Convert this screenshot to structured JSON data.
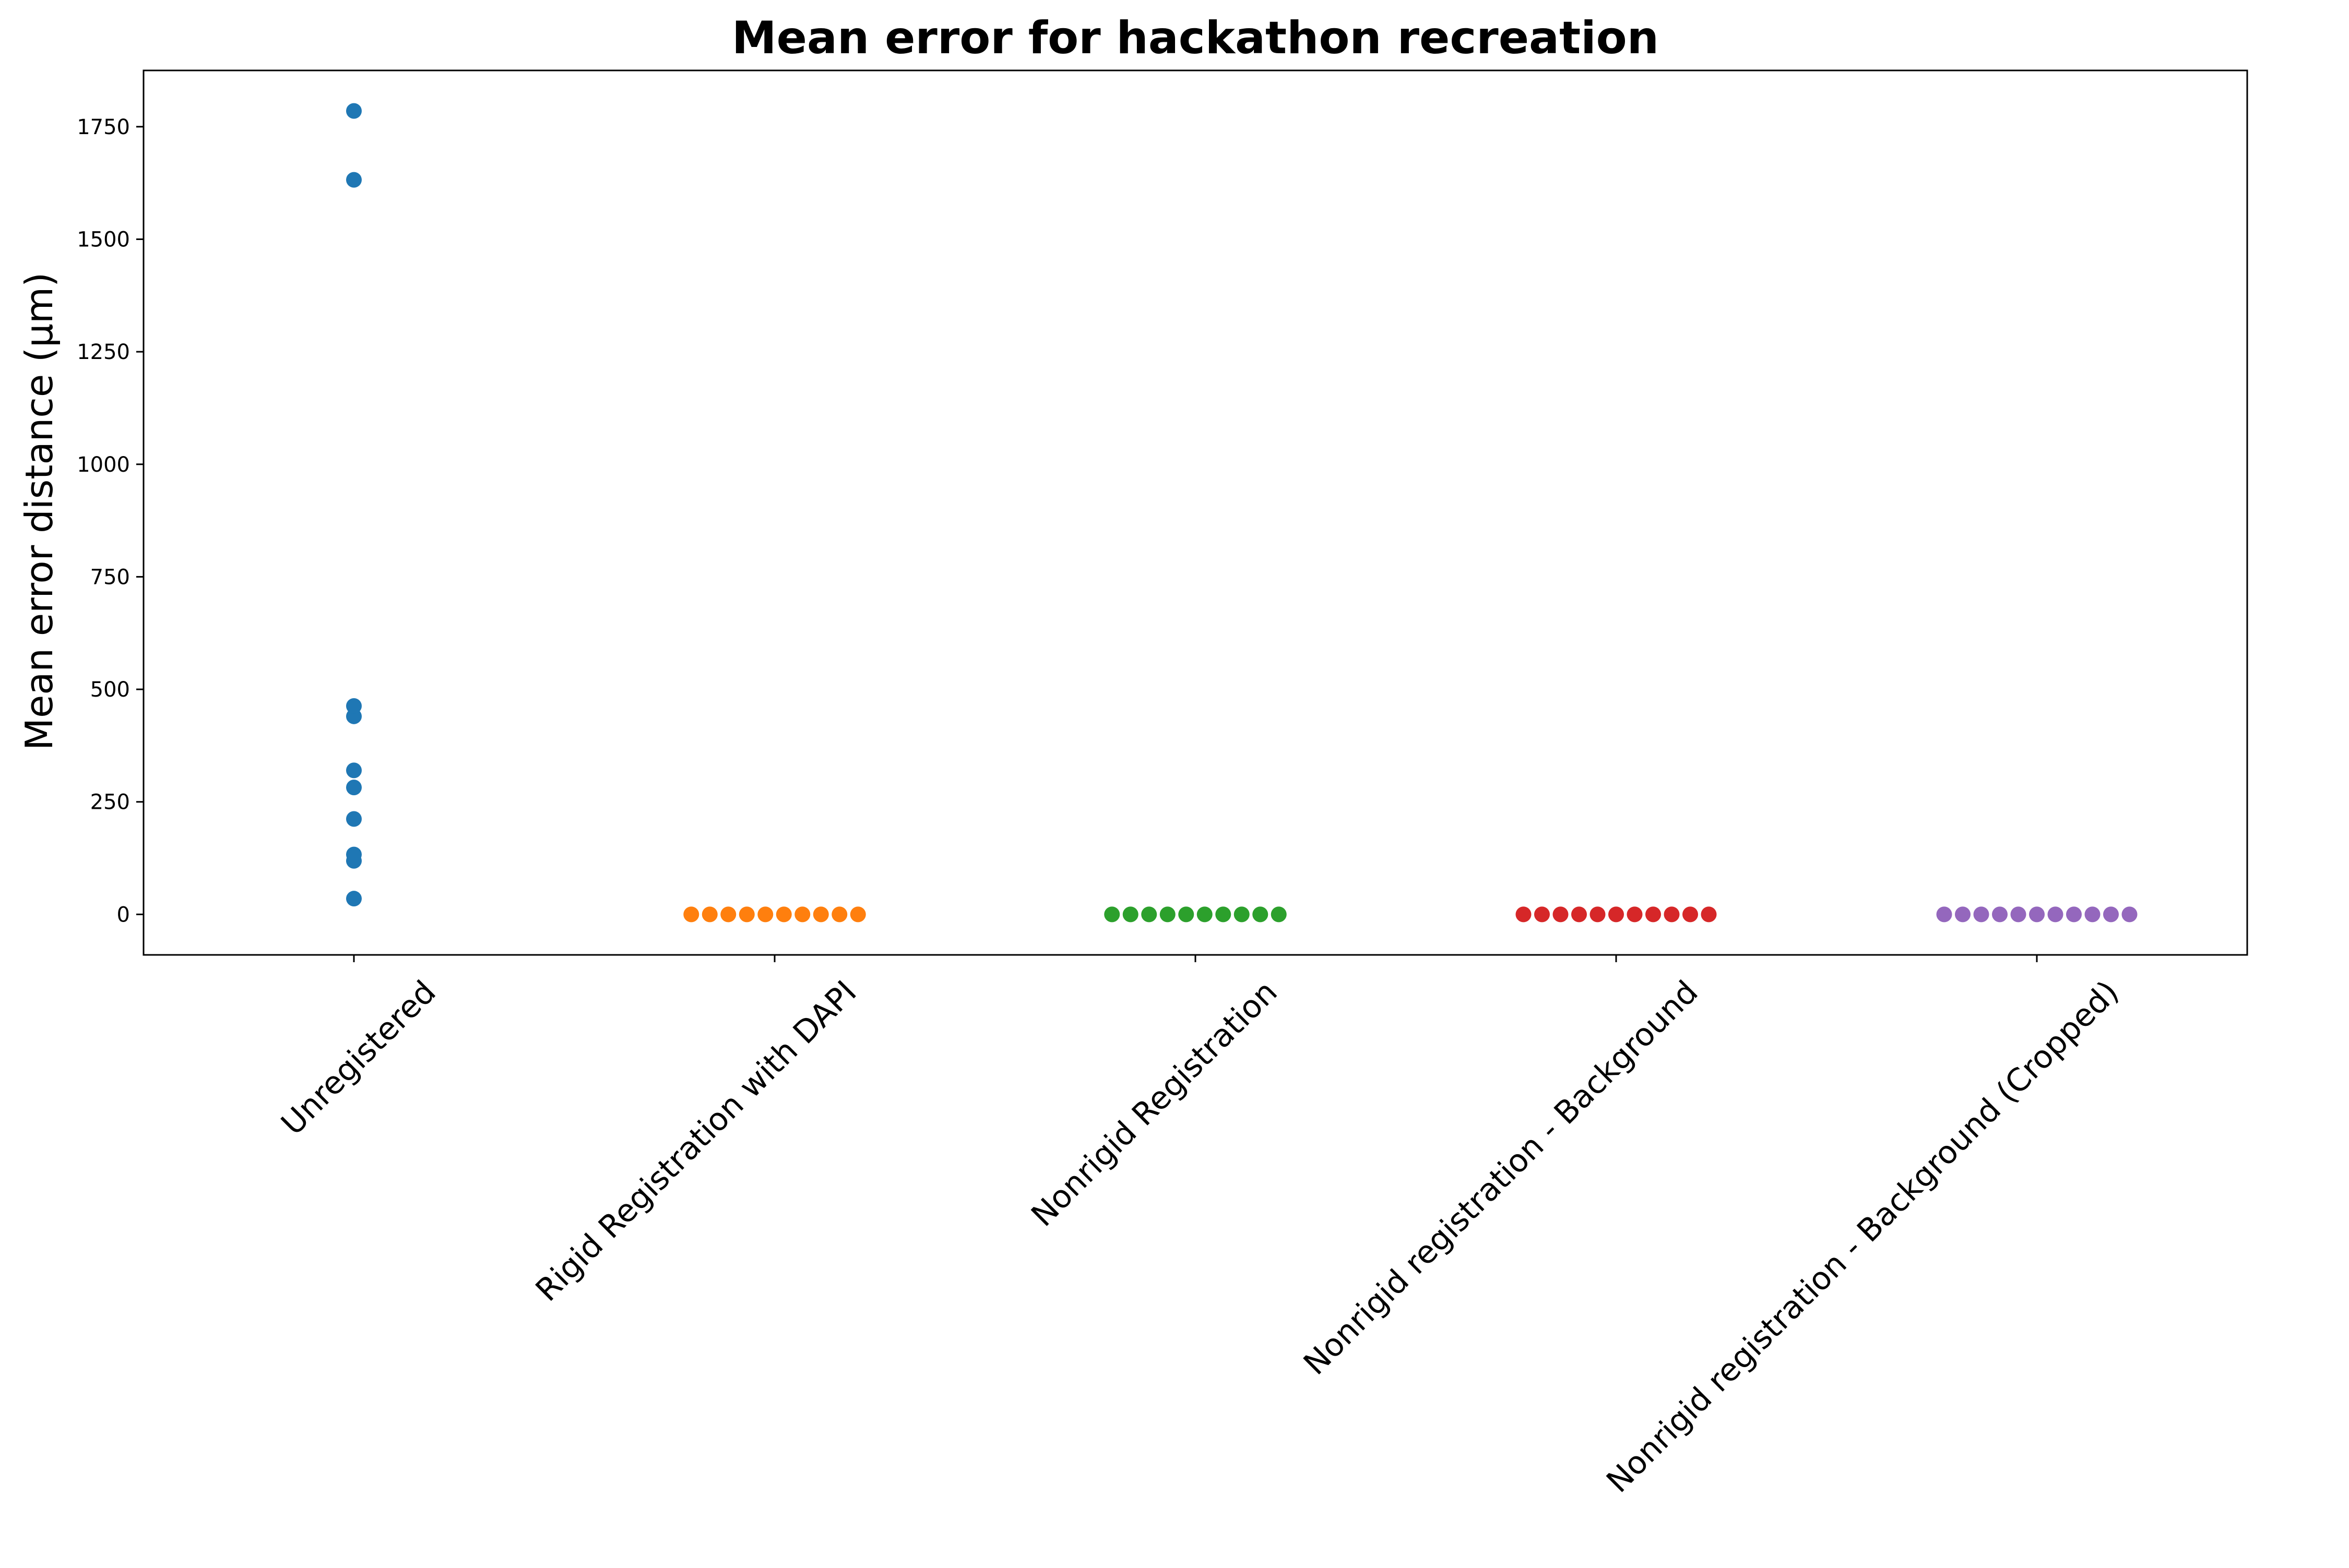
{
  "chart_data": {
    "type": "scatter",
    "title": "Mean error for hackathon recreation",
    "xlabel": "",
    "ylabel": "Mean error distance (µm)",
    "ylim": [
      -90,
      1875
    ],
    "yticks": [
      0,
      250,
      500,
      750,
      1000,
      1250,
      1500,
      1750
    ],
    "ytick_labels": [
      "0",
      "250",
      "500",
      "750",
      "1000",
      "1250",
      "1500",
      "1750"
    ],
    "grid": false,
    "legend": "none",
    "plot_style": "swarm",
    "categories": [
      "Unregistered",
      "Rigid Registration with DAPI",
      "Nonrigid Registration",
      "Nonrigid registration - Background",
      "Nonrigid registration - Background (Cropped)"
    ],
    "series": [
      {
        "category": "Unregistered",
        "color": "#1f77b4",
        "values": [
          1785,
          1632,
          463,
          440,
          320,
          282,
          212,
          133,
          119,
          35
        ]
      },
      {
        "category": "Rigid Registration with DAPI",
        "color": "#ff7f0e",
        "values": [
          0,
          0,
          0,
          0,
          0,
          0,
          0,
          0,
          0,
          0
        ]
      },
      {
        "category": "Nonrigid Registration",
        "color": "#2ca02c",
        "values": [
          0,
          0,
          0,
          0,
          0,
          0,
          0,
          0,
          0,
          0
        ]
      },
      {
        "category": "Nonrigid registration - Background",
        "color": "#d62728",
        "values": [
          0,
          0,
          0,
          0,
          0,
          0,
          0,
          0,
          0,
          0,
          0
        ]
      },
      {
        "category": "Nonrigid registration - Background (Cropped)",
        "color": "#9467bd",
        "values": [
          0,
          0,
          0,
          0,
          0,
          0,
          0,
          0,
          0,
          0,
          0
        ]
      }
    ]
  }
}
